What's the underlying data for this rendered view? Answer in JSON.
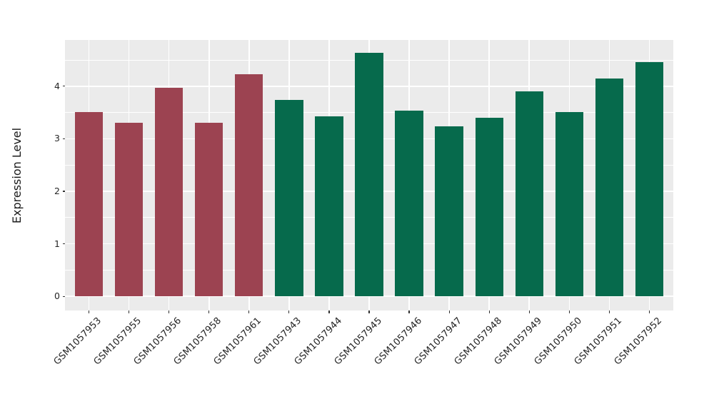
{
  "chart_data": {
    "type": "bar",
    "title": "",
    "xlabel": "",
    "ylabel": "Expression Level",
    "categories": [
      "GSM1057953",
      "GSM1057955",
      "GSM1057956",
      "GSM1057958",
      "GSM1057961",
      "GSM1057943",
      "GSM1057944",
      "GSM1057945",
      "GSM1057946",
      "GSM1057947",
      "GSM1057948",
      "GSM1057949",
      "GSM1057950",
      "GSM1057951",
      "GSM1057952"
    ],
    "values": [
      3.51,
      3.3,
      3.97,
      3.31,
      4.23,
      3.74,
      3.42,
      4.63,
      3.54,
      3.23,
      3.4,
      3.9,
      3.51,
      4.15,
      4.46
    ],
    "bar_colors": [
      "#9C4351",
      "#9C4351",
      "#9C4351",
      "#9C4351",
      "#9C4351",
      "#066A4C",
      "#066A4C",
      "#066A4C",
      "#066A4C",
      "#066A4C",
      "#066A4C",
      "#066A4C",
      "#066A4C",
      "#066A4C",
      "#066A4C"
    ],
    "group_colors": {
      "left_group": "#9C4351",
      "right_group": "#066A4C"
    },
    "yticks": [
      0,
      1,
      2,
      3,
      4
    ],
    "yticks_minor": [
      0.5,
      1.5,
      2.5,
      3.5,
      4.5
    ],
    "ylim": [
      -0.27,
      4.88
    ],
    "grid": true,
    "legend": "none",
    "panel_bg": "#EBEBEB",
    "grid_color": "#FFFFFF",
    "axis_text_color": "#262626",
    "bar_width_frac": 0.7
  }
}
